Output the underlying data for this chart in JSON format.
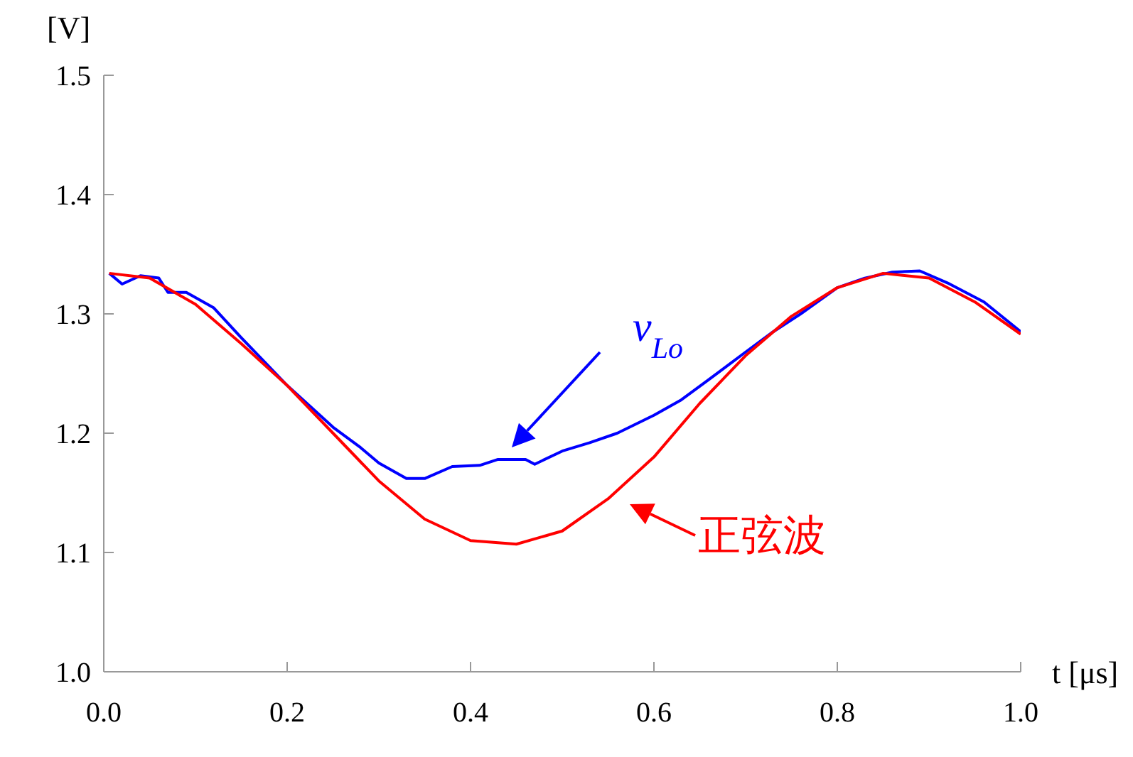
{
  "chart_data": {
    "type": "line",
    "xlabel": "t [μs]",
    "ylabel": "[V]",
    "xlim": [
      0,
      1
    ],
    "xticks": [
      {
        "value": 0,
        "label": "0.0"
      },
      0.2,
      0.4,
      0.6,
      0.8,
      {
        "value": 1,
        "label": "1.0"
      }
    ],
    "ylim": [
      1.0,
      1.5
    ],
    "yticks": [
      {
        "value": 1.0,
        "label": "1.0"
      },
      1.1,
      1.2,
      1.3,
      1.4,
      1.5
    ],
    "grid": false,
    "legend": false,
    "marker": "none",
    "line_style": "solid",
    "series": [
      {
        "color": "#0000ff",
        "x": [
          0.006,
          0.02,
          0.04,
          0.06,
          0.07,
          0.09,
          0.12,
          0.15,
          0.2,
          0.25,
          0.28,
          0.3,
          0.33,
          0.35,
          0.38,
          0.41,
          0.43,
          0.46,
          0.47,
          0.5,
          0.53,
          0.56,
          0.6,
          0.63,
          0.66,
          0.7,
          0.73,
          0.76,
          0.8,
          0.83,
          0.86,
          0.89,
          0.92,
          0.96,
          1.0
        ],
        "values": [
          1.334,
          1.325,
          1.332,
          1.33,
          1.318,
          1.318,
          1.305,
          1.28,
          1.24,
          1.205,
          1.188,
          1.175,
          1.162,
          1.162,
          1.172,
          1.173,
          1.178,
          1.178,
          1.174,
          1.185,
          1.192,
          1.2,
          1.215,
          1.228,
          1.245,
          1.268,
          1.285,
          1.3,
          1.322,
          1.33,
          1.335,
          1.336,
          1.326,
          1.31,
          1.285
        ]
      },
      {
        "color": "#ff0000",
        "x": [
          0.006,
          0.05,
          0.1,
          0.15,
          0.2,
          0.25,
          0.3,
          0.35,
          0.4,
          0.45,
          0.5,
          0.55,
          0.6,
          0.65,
          0.7,
          0.75,
          0.8,
          0.85,
          0.9,
          0.95,
          1.0
        ],
        "values": [
          1.334,
          1.33,
          1.308,
          1.275,
          1.24,
          1.2,
          1.16,
          1.128,
          1.11,
          1.107,
          1.118,
          1.145,
          1.18,
          1.225,
          1.265,
          1.298,
          1.322,
          1.334,
          1.33,
          1.31,
          1.283
        ]
      }
    ],
    "annotations": [
      "v$_{Lo}$",
      "正弦波"
    ]
  }
}
